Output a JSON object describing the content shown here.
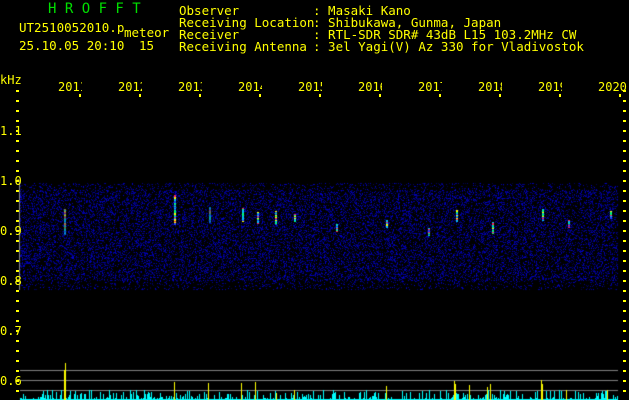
{
  "app": {
    "title": "H R O F F T"
  },
  "file": {
    "name": "UT2510052010.png",
    "type": "meteor",
    "datetime": "25.10.05 20:10",
    "count": "15"
  },
  "info": [
    {
      "label": "Observer",
      "value": ": Masaki Kano"
    },
    {
      "label": "Receiving Location",
      "value": ": Shibukawa, Gunma, Japan"
    },
    {
      "label": "Receiver",
      "value": ": RTL-SDR SDR# 43dB L15 103.2MHz CW"
    },
    {
      "label": "Receiving Antenna",
      "value": ": 3el Yagi(V) Az 330 for Vladivostok"
    }
  ],
  "axis": {
    "unit": "kHz",
    "x_ticks": [
      "2011",
      "2012",
      "2013",
      "2014",
      "2015",
      "2016",
      "2017",
      "2018",
      "2019",
      "2020"
    ],
    "y_ticks": [
      "1.1",
      "1.0",
      "0.9",
      "0.8",
      "0.7",
      "0.6"
    ]
  },
  "colors": {
    "text": "#ffff00",
    "title": "#00e000",
    "noise": "#0000c0",
    "echo": "#ff2060",
    "histogram": "#00ffff",
    "peak": "#ffff00"
  }
}
